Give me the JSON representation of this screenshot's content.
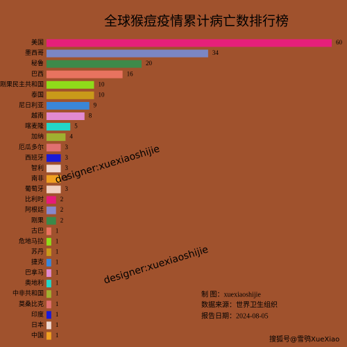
{
  "chart_data": {
    "type": "barh",
    "title": "全球猴痘疫情累计病亡数排行榜",
    "categories": [
      "美国",
      "墨西哥",
      "秘鲁",
      "巴西",
      "刚果民主共和国",
      "泰国",
      "尼日利亚",
      "越南",
      "喀麦隆",
      "加纳",
      "厄瓜多尔",
      "西班牙",
      "智利",
      "南非",
      "葡萄牙",
      "比利时",
      "阿根廷",
      "刚果",
      "古巴",
      "危地马拉",
      "苏丹",
      "捷克",
      "巴拿马",
      "奥地利",
      "中非共和国",
      "莫桑比克",
      "印度",
      "日本",
      "中国"
    ],
    "values": [
      60,
      34,
      20,
      16,
      10,
      10,
      9,
      8,
      5,
      4,
      3,
      3,
      3,
      3,
      3,
      2,
      2,
      2,
      1,
      1,
      1,
      1,
      1,
      1,
      1,
      1,
      1,
      1,
      1
    ],
    "colors": [
      "#e6207a",
      "#7b86c4",
      "#3e8a4a",
      "#e8735f",
      "#8fdc1a",
      "#c99a1a",
      "#3a86d8",
      "#e28ad0",
      "#23d6c8",
      "#a0b030",
      "#e07070",
      "#1a1ad8",
      "#f0d8d0",
      "#f0a020",
      "#f0d0c0",
      "#e61a7a",
      "#8888cc",
      "#3a8a4a",
      "#e8735f",
      "#8fdc1a",
      "#c99a1a",
      "#3a86d8",
      "#e28ad0",
      "#23d6c8",
      "#a0b030",
      "#e07070",
      "#1a1ad8",
      "#f0d8d0",
      "#f0a020"
    ],
    "annotations": [
      "制 图：xuexiaoshijie",
      "数据来源：世界卫生组织",
      "报告日期：2024-08-05"
    ],
    "watermarks": [
      "designer:xuexiaoshijie",
      "designer:xuexiaoshijie",
      "搜狐号@雪鸮XueXiao"
    ]
  }
}
